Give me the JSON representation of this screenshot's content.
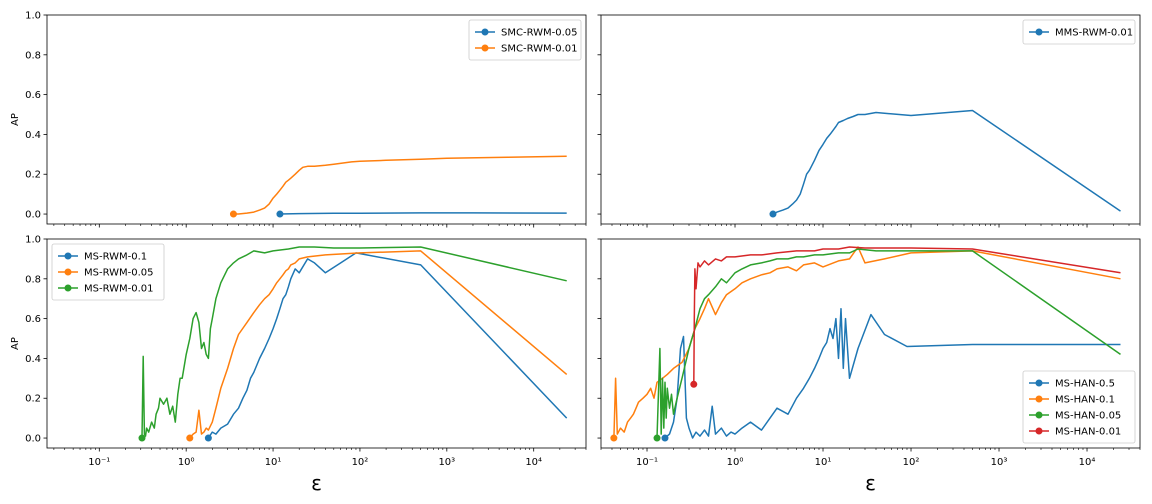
{
  "chart_data": [
    {
      "panel": "top-left",
      "type": "line",
      "xscale": "log",
      "xlim": [
        0.025,
        40000
      ],
      "ylim": [
        -0.05,
        1.0
      ],
      "yticks": [
        "0.0",
        "0.2",
        "0.4",
        "0.6",
        "0.8",
        "1.0"
      ],
      "xticks": [],
      "xlabel": "",
      "ylabel": "AP",
      "legend_position": "top-right",
      "series": [
        {
          "name": "SMC-RWM-0.05",
          "color": "#1f77b4",
          "x": [
            12,
            20,
            50,
            100,
            500,
            2000,
            24000
          ],
          "y": [
            0.0,
            0.002,
            0.004,
            0.004,
            0.006,
            0.006,
            0.005
          ]
        },
        {
          "name": "SMC-RWM-0.01",
          "color": "#ff7f0e",
          "x": [
            3.5,
            4,
            5,
            6,
            7,
            8,
            9,
            10,
            11,
            12,
            13,
            14,
            15,
            16,
            18,
            20,
            22,
            25,
            30,
            40,
            50,
            80,
            100,
            200,
            500,
            1000,
            5000,
            24000
          ],
          "y": [
            0.0,
            0.0,
            0.005,
            0.01,
            0.02,
            0.03,
            0.05,
            0.08,
            0.1,
            0.12,
            0.14,
            0.16,
            0.17,
            0.18,
            0.2,
            0.22,
            0.235,
            0.24,
            0.24,
            0.245,
            0.25,
            0.262,
            0.265,
            0.27,
            0.275,
            0.28,
            0.285,
            0.29
          ]
        }
      ]
    },
    {
      "panel": "top-right",
      "type": "line",
      "xscale": "log",
      "xlim": [
        0.03,
        40000
      ],
      "ylim": [
        -0.05,
        1.0
      ],
      "yticks": [],
      "xticks": [],
      "xlabel": "",
      "ylabel": "",
      "legend_position": "top-right",
      "series": [
        {
          "name": "MMS-RWM-0.01",
          "color": "#1f77b4",
          "x": [
            2.7,
            3,
            3.5,
            4,
            4.5,
            5,
            5.5,
            6,
            6.5,
            7,
            8,
            9,
            10,
            11,
            12,
            13,
            14,
            15,
            17,
            19,
            22,
            25,
            30,
            40,
            100,
            500,
            24000
          ],
          "y": [
            0.0,
            0.01,
            0.02,
            0.03,
            0.05,
            0.07,
            0.1,
            0.15,
            0.2,
            0.22,
            0.27,
            0.32,
            0.35,
            0.38,
            0.4,
            0.42,
            0.44,
            0.46,
            0.47,
            0.48,
            0.49,
            0.5,
            0.5,
            0.51,
            0.495,
            0.52,
            0.015
          ]
        }
      ]
    },
    {
      "panel": "bottom-left",
      "type": "line",
      "xscale": "log",
      "xlim": [
        0.025,
        40000
      ],
      "ylim": [
        -0.05,
        1.0
      ],
      "yticks": [
        "0.0",
        "0.2",
        "0.4",
        "0.6",
        "0.8",
        "1.0"
      ],
      "xticks": [
        "10⁻¹",
        "10⁰",
        "10¹",
        "10²",
        "10³",
        "10⁴"
      ],
      "xlabel": "ε",
      "ylabel": "AP",
      "legend_position": "top-left",
      "series": [
        {
          "name": "MS-RWM-0.1",
          "color": "#1f77b4",
          "x": [
            1.8,
            2,
            2.2,
            2.5,
            3,
            3.5,
            4,
            4.5,
            5,
            5.5,
            6,
            7,
            8,
            9,
            10,
            11,
            12,
            13,
            14,
            15,
            16,
            18,
            20,
            25,
            30,
            40,
            60,
            90,
            500,
            24000
          ],
          "y": [
            0.0,
            0.03,
            0.02,
            0.05,
            0.07,
            0.12,
            0.15,
            0.2,
            0.24,
            0.3,
            0.33,
            0.4,
            0.45,
            0.5,
            0.55,
            0.6,
            0.65,
            0.7,
            0.72,
            0.76,
            0.8,
            0.85,
            0.83,
            0.9,
            0.88,
            0.83,
            0.88,
            0.93,
            0.87,
            0.1
          ]
        },
        {
          "name": "MS-RWM-0.05",
          "color": "#ff7f0e",
          "x": [
            1.1,
            1.2,
            1.3,
            1.4,
            1.5,
            1.6,
            1.7,
            1.8,
            2,
            2.2,
            2.5,
            3,
            3.5,
            4,
            5,
            6,
            7,
            8,
            9,
            10,
            11,
            12,
            13,
            14,
            15,
            16,
            18,
            20,
            25,
            40,
            100,
            500,
            24000
          ],
          "y": [
            0.0,
            0.02,
            0.03,
            0.14,
            0.02,
            0.03,
            0.05,
            0.04,
            0.08,
            0.15,
            0.25,
            0.35,
            0.45,
            0.52,
            0.58,
            0.63,
            0.67,
            0.7,
            0.72,
            0.75,
            0.78,
            0.8,
            0.82,
            0.84,
            0.85,
            0.87,
            0.88,
            0.9,
            0.91,
            0.92,
            0.93,
            0.94,
            0.32
          ]
        },
        {
          "name": "MS-RWM-0.01",
          "color": "#2ca02c",
          "x": [
            0.31,
            0.32,
            0.33,
            0.34,
            0.35,
            0.37,
            0.4,
            0.43,
            0.45,
            0.48,
            0.5,
            0.55,
            0.6,
            0.65,
            0.7,
            0.75,
            0.8,
            0.85,
            0.9,
            1.0,
            1.1,
            1.2,
            1.3,
            1.4,
            1.5,
            1.6,
            1.7,
            1.8,
            1.9,
            2.0,
            2.2,
            2.5,
            3,
            3.5,
            4,
            5,
            6,
            8,
            10,
            15,
            20,
            30,
            50,
            100,
            500,
            24000
          ],
          "y": [
            0.0,
            0.41,
            0.02,
            0.01,
            0.05,
            0.03,
            0.08,
            0.05,
            0.12,
            0.15,
            0.2,
            0.17,
            0.2,
            0.12,
            0.16,
            0.08,
            0.22,
            0.3,
            0.3,
            0.42,
            0.5,
            0.6,
            0.63,
            0.58,
            0.45,
            0.48,
            0.42,
            0.4,
            0.55,
            0.6,
            0.7,
            0.78,
            0.85,
            0.88,
            0.9,
            0.92,
            0.94,
            0.93,
            0.94,
            0.95,
            0.96,
            0.96,
            0.955,
            0.955,
            0.96,
            0.79
          ]
        }
      ]
    },
    {
      "panel": "bottom-right",
      "type": "line",
      "xscale": "log",
      "xlim": [
        0.03,
        40000
      ],
      "ylim": [
        -0.05,
        1.0
      ],
      "yticks": [],
      "xticks": [
        "10⁻¹",
        "10⁰",
        "10¹",
        "10²",
        "10³",
        "10⁴"
      ],
      "xlabel": "ε",
      "ylabel": "",
      "legend_position": "bottom-right",
      "series": [
        {
          "name": "MS-HAN-0.5",
          "color": "#1f77b4",
          "x": [
            0.16,
            0.18,
            0.2,
            0.22,
            0.24,
            0.26,
            0.28,
            0.3,
            0.33,
            0.36,
            0.4,
            0.45,
            0.5,
            0.55,
            0.6,
            0.7,
            0.8,
            0.9,
            1.0,
            1.2,
            1.5,
            2,
            2.5,
            3,
            4,
            5,
            6,
            7,
            8,
            9,
            10,
            11,
            12,
            13,
            14,
            15,
            16,
            17,
            18,
            20,
            25,
            35,
            50,
            90,
            500,
            24000
          ],
          "y": [
            0.0,
            0.02,
            0.08,
            0.2,
            0.45,
            0.51,
            0.1,
            0.05,
            0.0,
            0.03,
            0.01,
            0.04,
            0.01,
            0.16,
            0.02,
            0.05,
            0.01,
            0.03,
            0.02,
            0.05,
            0.08,
            0.04,
            0.1,
            0.15,
            0.12,
            0.2,
            0.25,
            0.3,
            0.35,
            0.4,
            0.45,
            0.48,
            0.55,
            0.5,
            0.6,
            0.4,
            0.65,
            0.35,
            0.6,
            0.3,
            0.45,
            0.62,
            0.52,
            0.46,
            0.47,
            0.47
          ]
        },
        {
          "name": "MS-HAN-0.1",
          "color": "#ff7f0e",
          "x": [
            0.042,
            0.044,
            0.046,
            0.05,
            0.055,
            0.06,
            0.065,
            0.07,
            0.075,
            0.08,
            0.09,
            0.1,
            0.11,
            0.12,
            0.13,
            0.15,
            0.17,
            0.2,
            0.25,
            0.3,
            0.35,
            0.4,
            0.45,
            0.5,
            0.6,
            0.7,
            0.8,
            1.0,
            1.2,
            1.5,
            2,
            2.5,
            3,
            4,
            5,
            6,
            8,
            10,
            15,
            20,
            25,
            30,
            50,
            100,
            500,
            24000
          ],
          "y": [
            0.0,
            0.3,
            0.02,
            0.05,
            0.03,
            0.08,
            0.1,
            0.12,
            0.15,
            0.18,
            0.2,
            0.22,
            0.25,
            0.2,
            0.28,
            0.3,
            0.32,
            0.35,
            0.38,
            0.45,
            0.55,
            0.6,
            0.65,
            0.7,
            0.62,
            0.68,
            0.72,
            0.75,
            0.78,
            0.8,
            0.82,
            0.83,
            0.85,
            0.86,
            0.84,
            0.87,
            0.88,
            0.86,
            0.89,
            0.9,
            0.96,
            0.88,
            0.9,
            0.93,
            0.94,
            0.8
          ]
        },
        {
          "name": "MS-HAN-0.05",
          "color": "#2ca02c",
          "x": [
            0.13,
            0.14,
            0.145,
            0.15,
            0.155,
            0.16,
            0.165,
            0.17,
            0.18,
            0.19,
            0.2,
            0.22,
            0.25,
            0.3,
            0.35,
            0.4,
            0.45,
            0.5,
            0.6,
            0.7,
            0.8,
            1.0,
            1.2,
            1.5,
            2,
            2.5,
            3,
            4,
            5,
            6,
            8,
            10,
            15,
            20,
            25,
            40,
            100,
            500,
            24000
          ],
          "y": [
            0.0,
            0.45,
            0.02,
            0.3,
            0.05,
            0.28,
            0.1,
            0.25,
            0.15,
            0.22,
            0.12,
            0.2,
            0.3,
            0.45,
            0.55,
            0.65,
            0.7,
            0.72,
            0.76,
            0.8,
            0.78,
            0.83,
            0.85,
            0.87,
            0.88,
            0.89,
            0.9,
            0.9,
            0.91,
            0.91,
            0.92,
            0.92,
            0.93,
            0.93,
            0.95,
            0.94,
            0.94,
            0.94,
            0.42
          ]
        },
        {
          "name": "MS-HAN-0.01",
          "color": "#d62728",
          "x": [
            0.34,
            0.345,
            0.35,
            0.36,
            0.38,
            0.4,
            0.45,
            0.5,
            0.6,
            0.7,
            0.8,
            1.0,
            1.5,
            2,
            3,
            5,
            8,
            10,
            15,
            20,
            30,
            50,
            100,
            500,
            24000
          ],
          "y": [
            0.27,
            0.6,
            0.85,
            0.75,
            0.88,
            0.86,
            0.89,
            0.87,
            0.9,
            0.89,
            0.91,
            0.91,
            0.92,
            0.92,
            0.93,
            0.94,
            0.94,
            0.95,
            0.95,
            0.96,
            0.955,
            0.955,
            0.955,
            0.95,
            0.83
          ]
        }
      ]
    }
  ]
}
